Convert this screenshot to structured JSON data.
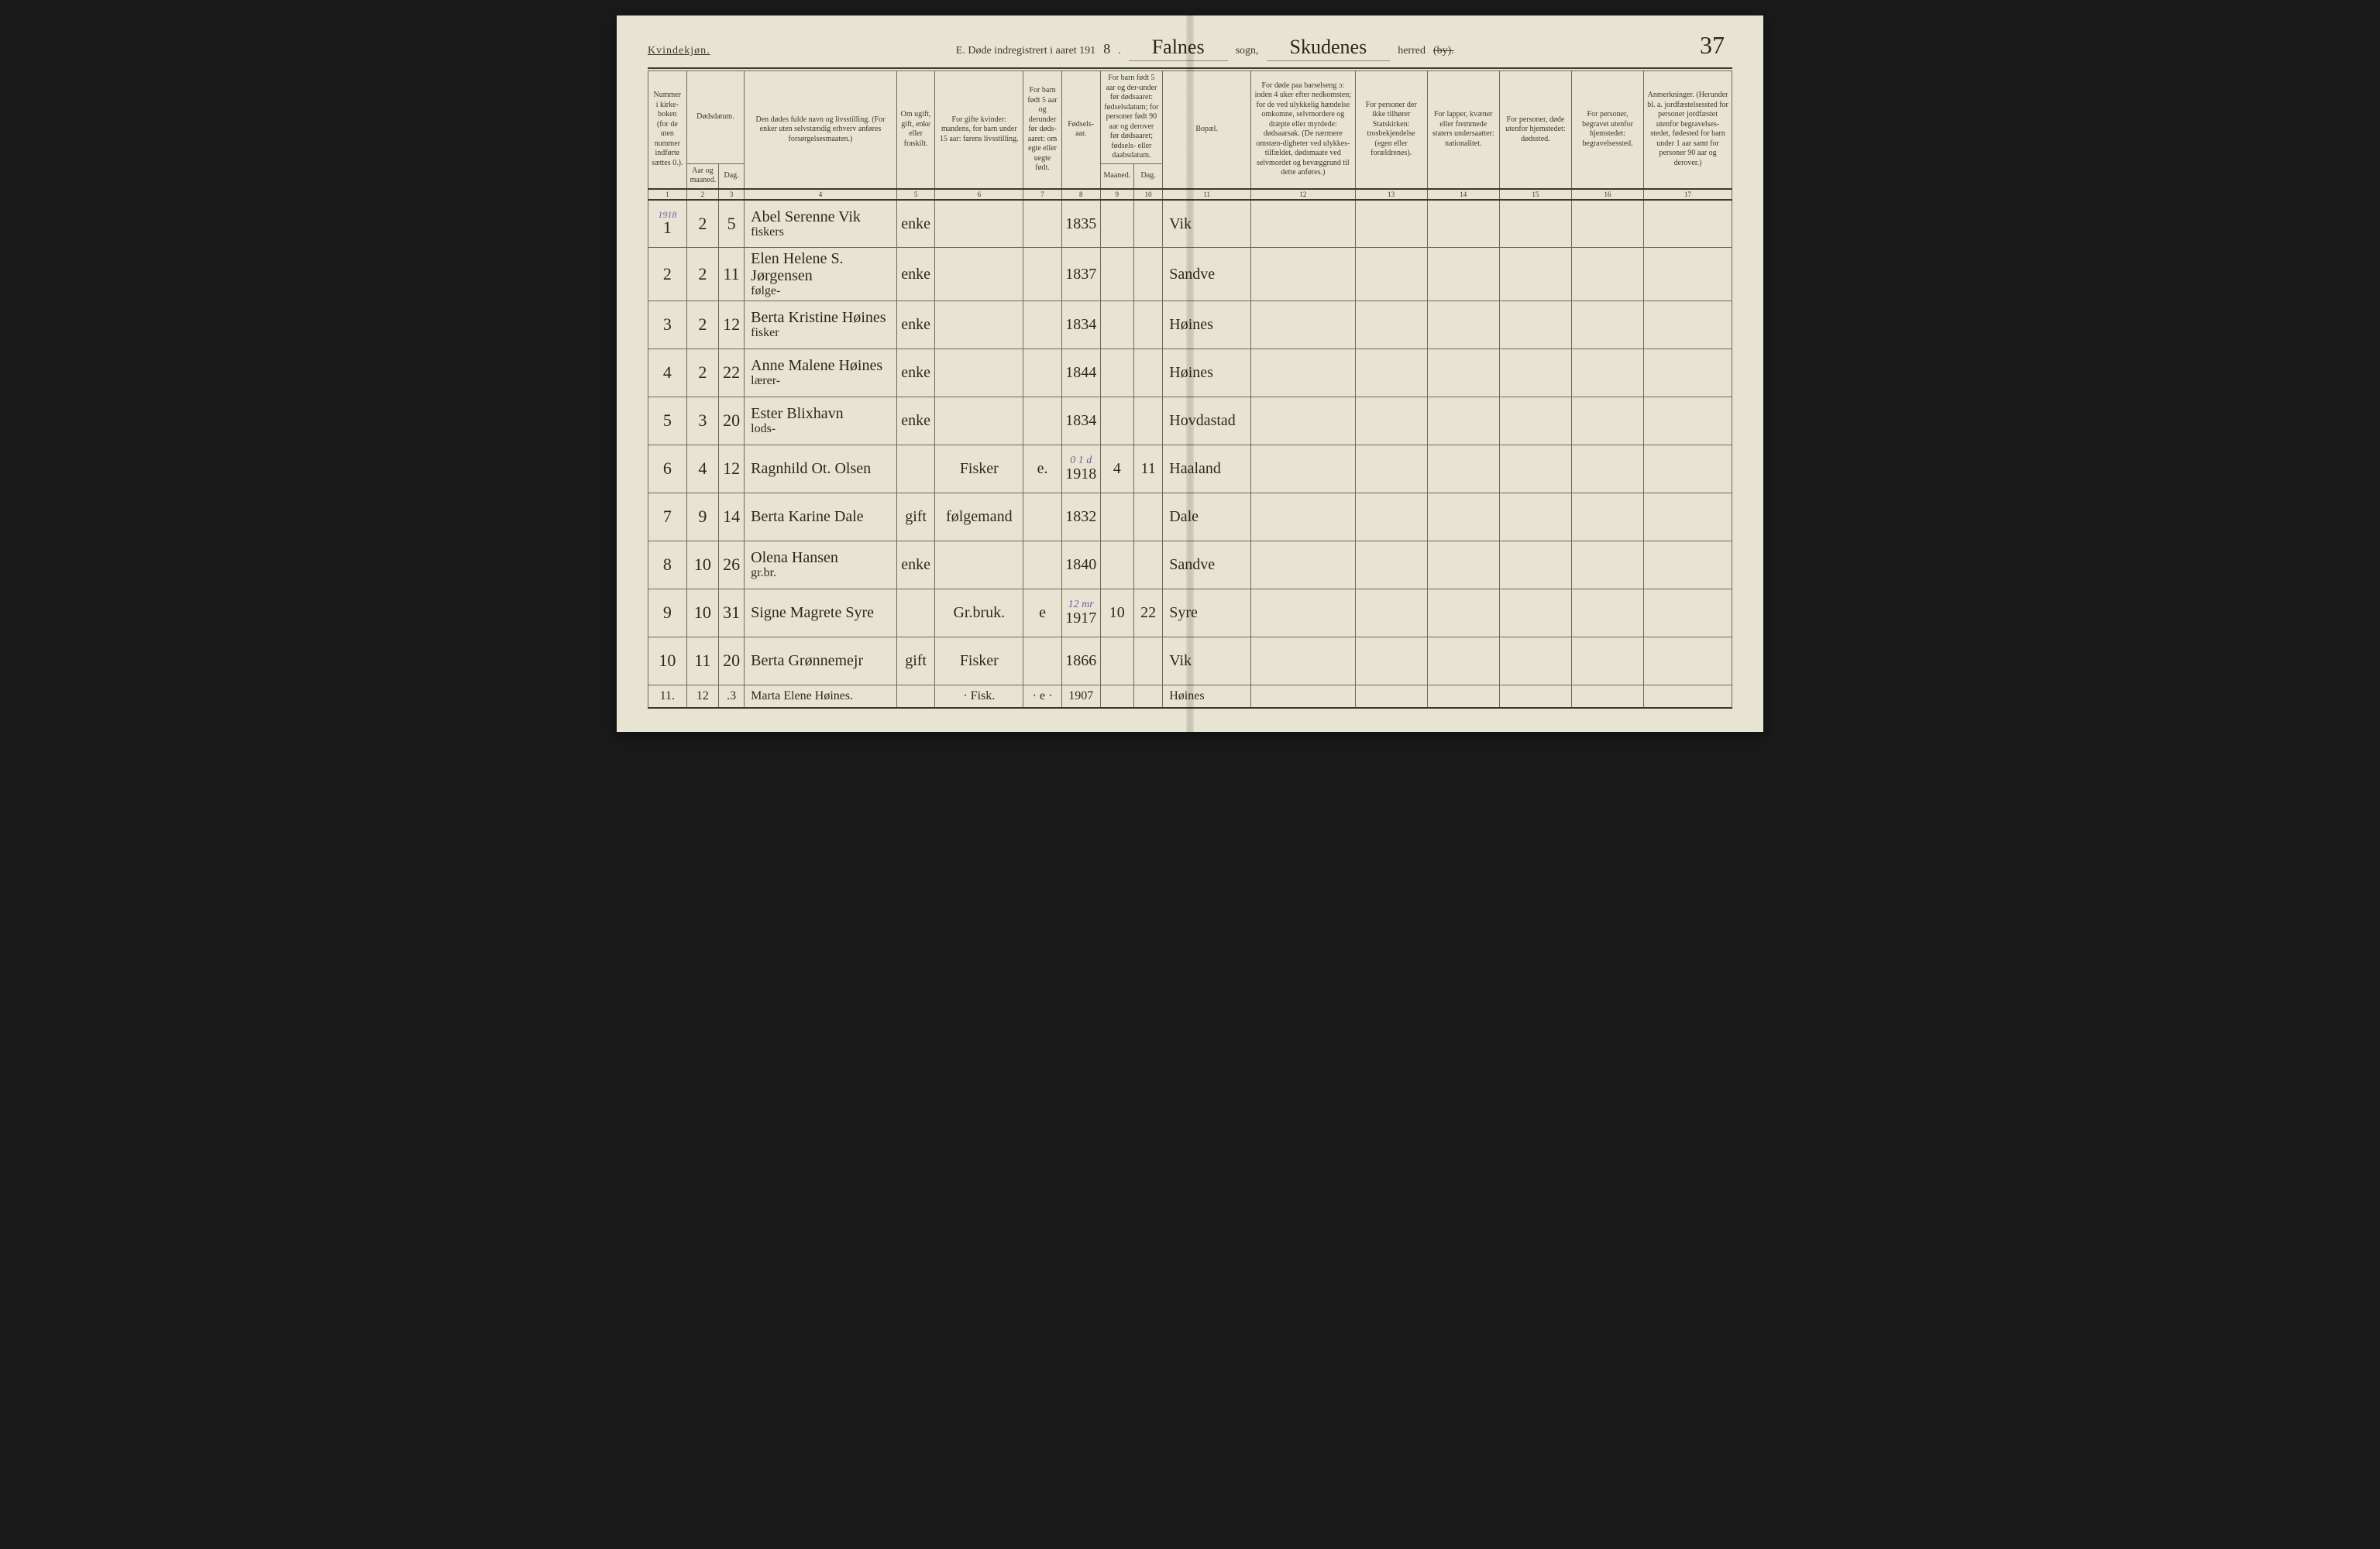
{
  "meta": {
    "gender_heading": "Kvindekjøn.",
    "title_prefix": "E.  Døde indregistrert i aaret 191",
    "year_suffix": "8",
    "sogn_value": "Falnes",
    "sogn_label": "sogn,",
    "herred_value": "Skudenes",
    "herred_label": "herred",
    "by_label": "(by).",
    "page_number": "37"
  },
  "columns": {
    "c1": "Nummer i kirke-boken (for de uten nummer indførte sættes 0.).",
    "c2_3": "Dødsdatum.",
    "c2": "Aar og maaned.",
    "c3": "Dag.",
    "c4": "Den dødes fulde navn og livsstilling. (For enker uten selvstændig erhverv anføres forsørgelsesmaaten.)",
    "c5": "Om ugift, gift, enke eller fraskilt.",
    "c6": "For gifte kvinder: mandens, for barn under 15 aar: farens livsstilling.",
    "c7": "For barn født 5 aar og derunder før døds-aaret: om egte eller uegte født.",
    "c8": "Fødsels-aar.",
    "c9_10": "For barn født 5 aar og der-under før dødsaaret: fødselsdatum; for personer født 90 aar og derover før dødsaaret; fødsels- eller daabsdatum.",
    "c9": "Maaned.",
    "c10": "Dag.",
    "c11": "Bopæl.",
    "c12": "For døde paa barselseng ɔ: inden 4 uker efter nedkomsten; for de ved ulykkelig hændelse omkomne, selvmordere og dræpte eller myrdede: dødsaarsak. (De nærmere omstæn-digheter ved ulykkes-tilfældet, dødsmaate ved selvmordet og bevæggrund til dette anføres.)",
    "c13": "For personer der ikke tilhører Statskirken: trosbekjendelse (egen eller forældrenes).",
    "c14": "For lapper, kvæner eller fremmede staters undersaatter: nationalitet.",
    "c15": "For personer, døde utenfor hjemstedet: dødssted.",
    "c16": "For personer, begravet utenfor hjemstedet: begravelsessted.",
    "c17": "Anmerkninger. (Herunder bl. a. jordfæstelsessted for personer jordfæstet utenfor begravelses-stedet, fødested for barn under 1 aar samt for personer 90 aar og derover.)"
  },
  "colnums": [
    "1",
    "2",
    "3",
    "4",
    "5",
    "6",
    "7",
    "8",
    "9",
    "10",
    "11",
    "12",
    "13",
    "14",
    "15",
    "16",
    "17"
  ],
  "year_note": "1918",
  "rows": [
    {
      "n": "1",
      "m": "2",
      "d": "5",
      "name": "Abel Serenne Vik",
      "sub": "fiskers",
      "c5": "enke",
      "c6": "",
      "c7": "",
      "c8": "1835",
      "c9": "",
      "c10": "",
      "c11": "Vik",
      "annot": ""
    },
    {
      "n": "2",
      "m": "2",
      "d": "11",
      "name": "Elen Helene S. Jørgensen",
      "sub": "følge-",
      "c5": "enke",
      "c6": "",
      "c7": "",
      "c8": "1837",
      "c9": "",
      "c10": "",
      "c11": "Sandve",
      "annot": ""
    },
    {
      "n": "3",
      "m": "2",
      "d": "12",
      "name": "Berta Kristine Høines",
      "sub": "fisker",
      "c5": "enke",
      "c6": "",
      "c7": "",
      "c8": "1834",
      "c9": "",
      "c10": "",
      "c11": "Høines",
      "annot": ""
    },
    {
      "n": "4",
      "m": "2",
      "d": "22",
      "name": "Anne Malene Høines",
      "sub": "lærer-",
      "c5": "enke",
      "c6": "",
      "c7": "",
      "c8": "1844",
      "c9": "",
      "c10": "",
      "c11": "Høines",
      "annot": ""
    },
    {
      "n": "5",
      "m": "3",
      "d": "20",
      "name": "Ester Blixhavn",
      "sub": "lods-",
      "c5": "enke",
      "c6": "",
      "c7": "",
      "c8": "1834",
      "c9": "",
      "c10": "",
      "c11": "Hovdastad",
      "annot": ""
    },
    {
      "n": "6",
      "m": "4",
      "d": "12",
      "name": "Ragnhild Ot. Olsen",
      "sub": "",
      "c5": "",
      "c6": "Fisker",
      "c7": "e.",
      "c8": "1918",
      "c9": "4",
      "c10": "11",
      "c11": "Haaland",
      "annot": "0 1 d"
    },
    {
      "n": "7",
      "m": "9",
      "d": "14",
      "name": "Berta Karine Dale",
      "sub": "",
      "c5": "gift",
      "c6": "følgemand",
      "c7": "",
      "c8": "1832",
      "c9": "",
      "c10": "",
      "c11": "Dale",
      "annot": ""
    },
    {
      "n": "8",
      "m": "10",
      "d": "26",
      "name": "Olena Hansen",
      "sub": "gr.br.",
      "c5": "enke",
      "c6": "",
      "c7": "",
      "c8": "1840",
      "c9": "",
      "c10": "",
      "c11": "Sandve",
      "annot": ""
    },
    {
      "n": "9",
      "m": "10",
      "d": "31",
      "name": "Signe Magrete Syre",
      "sub": "",
      "c5": "",
      "c6": "Gr.bruk.",
      "c7": "e",
      "c8": "1917",
      "c9": "10",
      "c10": "22",
      "c11": "Syre",
      "annot": "12 mr"
    },
    {
      "n": "10",
      "m": "11",
      "d": "20",
      "name": "Berta Grønnemejr",
      "sub": "",
      "c5": "gift",
      "c6": "Fisker",
      "c7": "",
      "c8": "1866",
      "c9": "",
      "c10": "",
      "c11": "Vik",
      "annot": ""
    }
  ],
  "last_row": {
    "n": "11.",
    "m": "12",
    "d": ".3",
    "name": "Marta Elene Høines.",
    "c6": "· Fisk.",
    "c7": "· e ·",
    "c8": "1907",
    "c11": "Høines"
  },
  "widths": {
    "c1": 48,
    "c2": 40,
    "c3": 32,
    "c4": 190,
    "c5": 48,
    "c6": 110,
    "c7": 48,
    "c8": 48,
    "c9": 42,
    "c10": 36,
    "c11": 110,
    "c12": 130,
    "c13": 90,
    "c14": 90,
    "c15": 90,
    "c16": 90,
    "c17": 110
  },
  "colors": {
    "paper": "#e8e4d4",
    "ink_print": "#3a3a2a",
    "ink_hand": "#2a2a1a",
    "rule": "#6a6a5a",
    "annot": "#7a5a9a"
  }
}
